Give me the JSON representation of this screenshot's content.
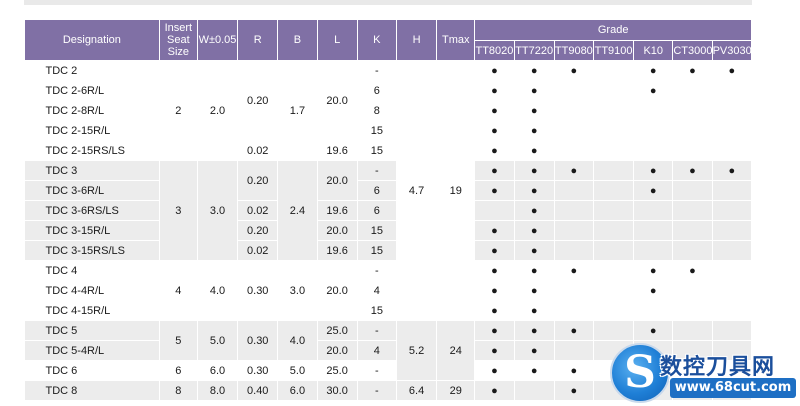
{
  "table": {
    "headers": {
      "designation": "Designation",
      "insert_seat_size": "Insert Seat Size",
      "w": "W±0.05",
      "r": "R",
      "b": "B",
      "l": "L",
      "k": "K",
      "h": "H",
      "tmax": "Tmax",
      "grade": "Grade",
      "grades": [
        "TT8020",
        "TT7220",
        "TT9080",
        "TT9100",
        "K10",
        "CT3000",
        "PV3030"
      ]
    },
    "rows": [
      {
        "designation": "TDC 2",
        "size": "2",
        "w": "2.0",
        "r": "0.20",
        "b": "1.7",
        "l": "20.0",
        "k": "-",
        "h": "4.7",
        "tmax": "19",
        "grades": [
          "●",
          "●",
          "●",
          "",
          "●",
          "●",
          "●"
        ]
      },
      {
        "designation": "TDC 2-6R/L",
        "k": "6",
        "grades": [
          "●",
          "●",
          "",
          "",
          "●",
          "",
          ""
        ]
      },
      {
        "designation": "TDC 2-8R/L",
        "k": "8",
        "grades": [
          "●",
          "●",
          "",
          "",
          "",
          "",
          ""
        ]
      },
      {
        "designation": "TDC 2-15R/L",
        "k": "15",
        "grades": [
          "●",
          "●",
          "",
          "",
          "",
          "",
          ""
        ]
      },
      {
        "designation": "TDC 2-15RS/LS",
        "r": "0.02",
        "l": "19.6",
        "k": "15",
        "grades": [
          "●",
          "●",
          "",
          "",
          "",
          "",
          ""
        ]
      },
      {
        "designation": "TDC 3",
        "size": "3",
        "w": "3.0",
        "r": "0.20",
        "b": "2.4",
        "l": "20.0",
        "k": "-",
        "grades": [
          "●",
          "●",
          "●",
          "",
          "●",
          "●",
          "●"
        ]
      },
      {
        "designation": "TDC 3-6R/L",
        "k": "6",
        "grades": [
          "●",
          "●",
          "",
          "",
          "●",
          "",
          ""
        ]
      },
      {
        "designation": "TDC 3-6RS/LS",
        "r": "0.02",
        "l": "19.6",
        "k": "6",
        "grades": [
          "",
          "●",
          "",
          "",
          "",
          "",
          ""
        ]
      },
      {
        "designation": "TDC 3-15R/L",
        "r": "0.20",
        "l": "20.0",
        "k": "15",
        "grades": [
          "●",
          "●",
          "",
          "",
          "",
          "",
          ""
        ]
      },
      {
        "designation": "TDC 3-15RS/LS",
        "r": "0.02",
        "l": "19.6",
        "k": "15",
        "grades": [
          "●",
          "●",
          "",
          "",
          "",
          "",
          ""
        ]
      },
      {
        "designation": "TDC 4",
        "size": "4",
        "w": "4.0",
        "r": "0.30",
        "b": "3.0",
        "l": "20.0",
        "k": "-",
        "grades": [
          "●",
          "●",
          "●",
          "",
          "●",
          "●",
          ""
        ]
      },
      {
        "designation": "TDC 4-4R/L",
        "k": "4",
        "grades": [
          "●",
          "●",
          "",
          "",
          "●",
          "",
          ""
        ]
      },
      {
        "designation": "TDC 4-15R/L",
        "k": "15",
        "grades": [
          "●",
          "●",
          "",
          "",
          "",
          "",
          ""
        ]
      },
      {
        "designation": "TDC 5",
        "size": "5",
        "w": "5.0",
        "r": "0.30",
        "b": "4.0",
        "l": "25.0",
        "k": "-",
        "h": "5.2",
        "tmax": "24",
        "grades": [
          "●",
          "●",
          "●",
          "",
          "●",
          "",
          ""
        ]
      },
      {
        "designation": "TDC 5-4R/L",
        "l": "20.0",
        "k": "4",
        "grades": [
          "●",
          "●",
          "",
          "",
          "",
          "",
          ""
        ]
      },
      {
        "designation": "TDC 6",
        "size": "6",
        "w": "6.0",
        "r": "0.30",
        "b": "5.0",
        "l": "25.0",
        "k": "-",
        "grades": [
          "●",
          "●",
          "●",
          "",
          "",
          "",
          ""
        ]
      },
      {
        "designation": "TDC 8",
        "size": "8",
        "w": "8.0",
        "r": "0.40",
        "b": "6.0",
        "l": "30.0",
        "k": "-",
        "h": "6.4",
        "tmax": "29",
        "grades": [
          "●",
          "",
          "●",
          "",
          "",
          "",
          ""
        ]
      }
    ]
  },
  "watermark": {
    "logo_letter": "S",
    "name": "数控刀具网",
    "url": "www.68cut.com"
  },
  "colors": {
    "header_bg": "#8070a5",
    "shaded_row": "#ececec"
  }
}
